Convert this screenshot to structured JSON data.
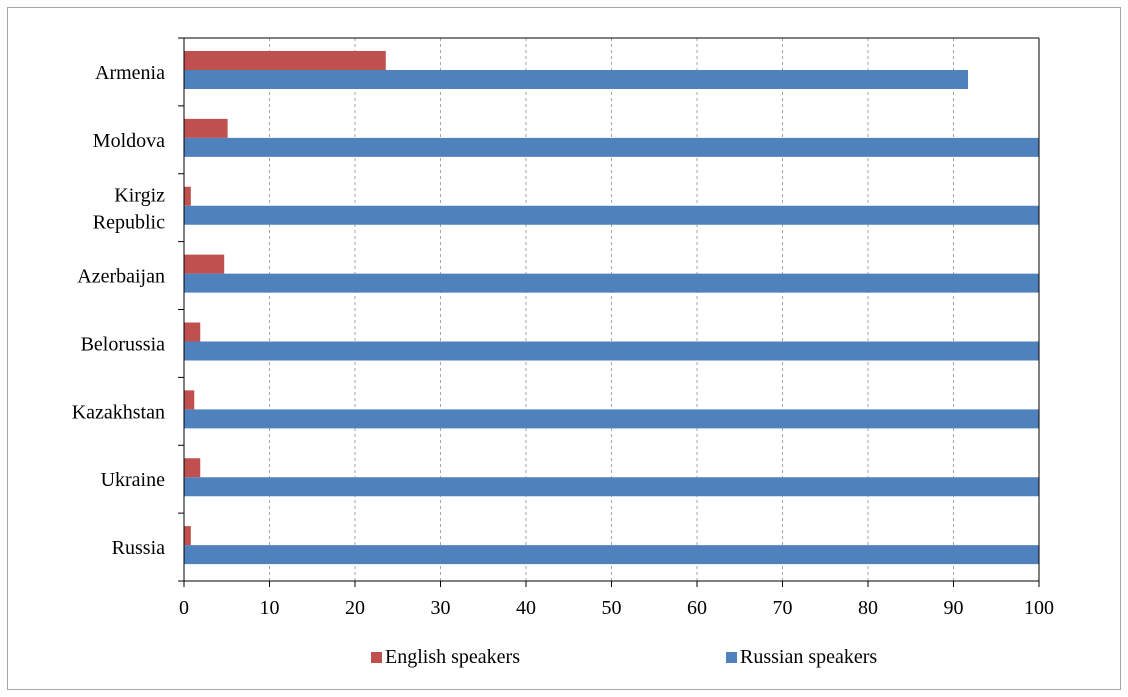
{
  "chart_data": {
    "type": "bar",
    "orientation": "horizontal",
    "categories": [
      "Armenia",
      "Moldova",
      "Kirgiz Republic",
      "Azerbaijan",
      "Belorussia",
      "Kazakhstan",
      "Ukraine",
      "Russia"
    ],
    "category_lines": [
      [
        "Armenia"
      ],
      [
        "Moldova"
      ],
      [
        "Kirgiz",
        "Republic"
      ],
      [
        "Azerbaijan"
      ],
      [
        "Belorussia"
      ],
      [
        "Kazakhstan"
      ],
      [
        "Ukraine"
      ],
      [
        "Russia"
      ]
    ],
    "series": [
      {
        "name": "English speakers",
        "color": "#c0504d",
        "values": [
          23.6,
          5.1,
          0.8,
          4.7,
          1.9,
          1.2,
          1.9,
          0.8
        ]
      },
      {
        "name": "Russian speakers",
        "color": "#4f81bd",
        "values": [
          91.7,
          100,
          100,
          100,
          100,
          100,
          100,
          100
        ]
      }
    ],
    "xlim": [
      0,
      100
    ],
    "xticks": [
      "0",
      "10",
      "20",
      "30",
      "40",
      "50",
      "60",
      "70",
      "80",
      "90",
      "100"
    ],
    "grid": "vertical-dashed",
    "legend_position": "bottom",
    "title": "",
    "xlabel": "",
    "ylabel": ""
  }
}
